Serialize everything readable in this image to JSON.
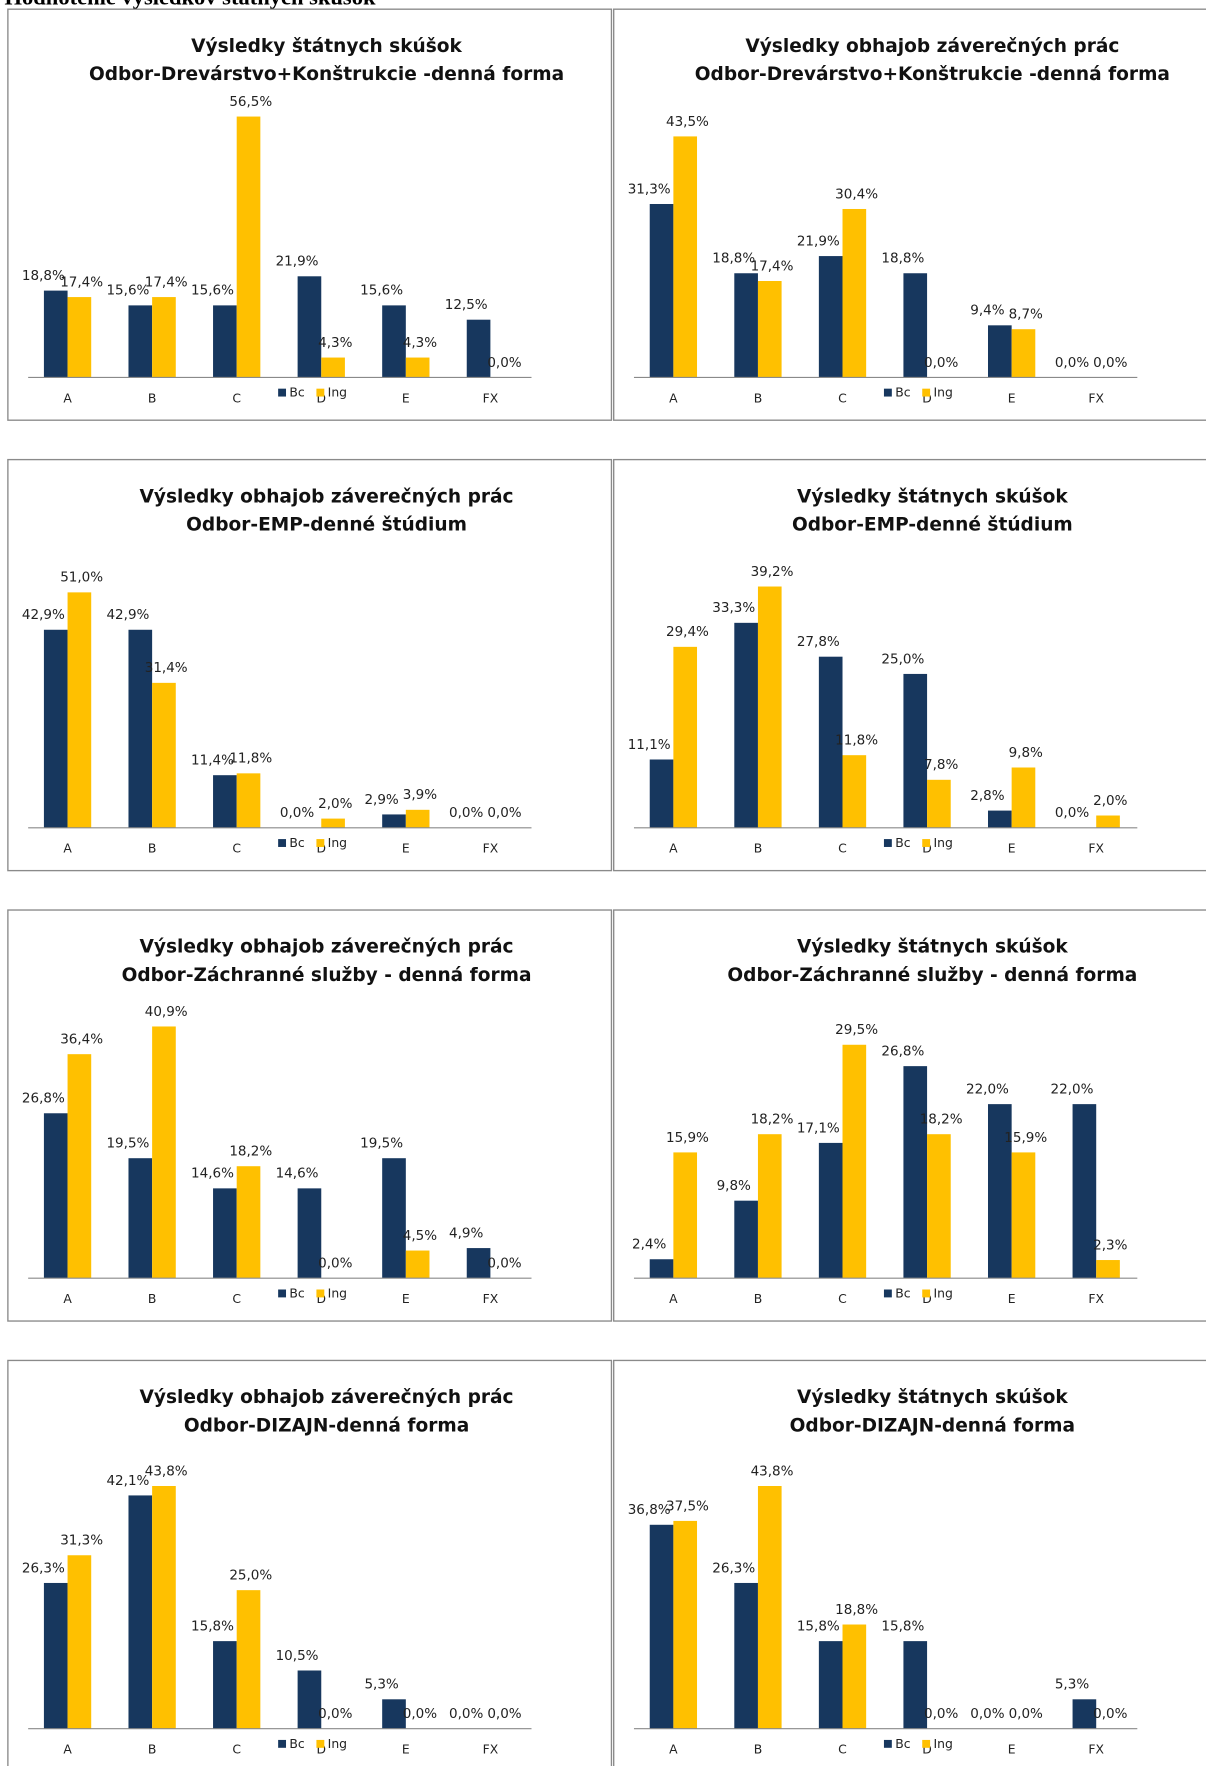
{
  "header": {
    "title": "Hodnotenie výsledkov štátnych skúšok"
  },
  "chart_data": [
    {
      "type": "bar",
      "title": "Výsledky štátnych  skúšok",
      "subtitle": "Odbor-Drevárstvo+Konštrukcie -denná forma",
      "categories": [
        "A",
        "B",
        "C",
        "D",
        "E",
        "FX"
      ],
      "ylim": [
        0,
        60
      ],
      "series": [
        {
          "name": "Bc",
          "color": "#17375e",
          "values": [
            18.8,
            15.6,
            15.6,
            21.9,
            15.6,
            12.5
          ],
          "value_labels": [
            "18,8%",
            "15,6%",
            "15,6%",
            "21,9%",
            "15,6%",
            "12,5%"
          ]
        },
        {
          "name": "Ing",
          "color": "#ffc000",
          "values": [
            17.4,
            17.4,
            56.5,
            4.3,
            4.3,
            0.0
          ],
          "value_labels": [
            "17,4%",
            "17,4%",
            "56,5%",
            "4,3%",
            "4,3%",
            "0,0%"
          ]
        }
      ]
    },
    {
      "type": "bar",
      "title": "Výsledky obhajob záverečných prác",
      "subtitle": "Odbor-Drevárstvo+Konštrukcie -denná forma",
      "categories": [
        "A",
        "B",
        "C",
        "D",
        "E",
        "FX"
      ],
      "ylim": [
        0,
        50
      ],
      "series": [
        {
          "name": "Bc",
          "color": "#17375e",
          "values": [
            31.3,
            18.8,
            21.9,
            18.8,
            9.4,
            0.0
          ],
          "value_labels": [
            "31,3%",
            "18,8%",
            "21,9%",
            "18,8%",
            "9,4%",
            "0,0%"
          ]
        },
        {
          "name": "Ing",
          "color": "#ffc000",
          "values": [
            43.5,
            17.4,
            30.4,
            0.0,
            8.7,
            0.0
          ],
          "value_labels": [
            "43,5%",
            "17,4%",
            "30,4%",
            "0,0%",
            "8,7%",
            "0,0%"
          ]
        }
      ]
    },
    {
      "type": "bar",
      "title": "Výsledky obhajob záverečných prác",
      "subtitle": "Odbor-EMP-denné štúdium",
      "categories": [
        "A",
        "B",
        "C",
        "D",
        "E",
        "FX"
      ],
      "ylim": [
        0,
        60
      ],
      "series": [
        {
          "name": "Bc",
          "color": "#17375e",
          "values": [
            42.9,
            42.9,
            11.4,
            0.0,
            2.9,
            0.0
          ],
          "value_labels": [
            "42,9%",
            "42,9%",
            "11,4%",
            "0,0%",
            "2,9%",
            "0,0%"
          ]
        },
        {
          "name": "Ing",
          "color": "#ffc000",
          "values": [
            51.0,
            31.4,
            11.8,
            2.0,
            3.9,
            0.0
          ],
          "value_labels": [
            "51,0%",
            "31,4%",
            "11,8%",
            "2,0%",
            "3,9%",
            "0,0%"
          ]
        }
      ]
    },
    {
      "type": "bar",
      "title": "Výsledky štátnych skúšok",
      "subtitle": "Odbor-EMP-denné štúdium",
      "categories": [
        "A",
        "B",
        "C",
        "D",
        "E",
        "FX"
      ],
      "ylim": [
        0,
        45
      ],
      "series": [
        {
          "name": "Bc",
          "color": "#17375e",
          "values": [
            11.1,
            33.3,
            27.8,
            25.0,
            2.8,
            0.0
          ],
          "value_labels": [
            "11,1%",
            "33,3%",
            "27,8%",
            "25,0%",
            "2,8%",
            "0,0%"
          ]
        },
        {
          "name": "Ing",
          "color": "#ffc000",
          "values": [
            29.4,
            39.2,
            11.8,
            7.8,
            9.8,
            2.0
          ],
          "value_labels": [
            "29,4%",
            "39,2%",
            "11,8%",
            "7,8%",
            "9,8%",
            "2,0%"
          ]
        }
      ]
    },
    {
      "type": "bar",
      "title": "Výsledky obhajob záverečných prác",
      "subtitle": "Odbor-Záchranné služby - denná forma",
      "categories": [
        "A",
        "B",
        "C",
        "D",
        "E",
        "FX"
      ],
      "ylim": [
        0,
        45
      ],
      "series": [
        {
          "name": "Bc",
          "color": "#17375e",
          "values": [
            26.8,
            19.5,
            14.6,
            14.6,
            19.5,
            4.9
          ],
          "value_labels": [
            "26,8%",
            "19,5%",
            "14,6%",
            "14,6%",
            "19,5%",
            "4,9%"
          ]
        },
        {
          "name": "Ing",
          "color": "#ffc000",
          "values": [
            36.4,
            40.9,
            18.2,
            0.0,
            4.5,
            0.0
          ],
          "value_labels": [
            "36,4%",
            "40,9%",
            "18,2%",
            "0,0%",
            "4,5%",
            "0,0%"
          ]
        }
      ]
    },
    {
      "type": "bar",
      "title": "Výsledky štátnych skúšok",
      "subtitle": "Odbor-Záchranné služby - denná forma",
      "categories": [
        "A",
        "B",
        "C",
        "D",
        "E",
        "FX"
      ],
      "ylim": [
        0,
        35
      ],
      "series": [
        {
          "name": "Bc",
          "color": "#17375e",
          "values": [
            2.4,
            9.8,
            17.1,
            26.8,
            22.0,
            22.0
          ],
          "value_labels": [
            "2,4%",
            "9,8%",
            "17,1%",
            "26,8%",
            "22,0%",
            "22,0%"
          ]
        },
        {
          "name": "Ing",
          "color": "#ffc000",
          "values": [
            15.9,
            18.2,
            29.5,
            18.2,
            15.9,
            2.3
          ],
          "value_labels": [
            "15,9%",
            "18,2%",
            "29,5%",
            "18,2%",
            "15,9%",
            "2,3%"
          ]
        }
      ]
    },
    {
      "type": "bar",
      "title": "Výsledky obhajob záverečných prác",
      "subtitle": "Odbor-DIZAJN-denná forma",
      "categories": [
        "A",
        "B",
        "C",
        "D",
        "E",
        "FX"
      ],
      "ylim": [
        0,
        50
      ],
      "series": [
        {
          "name": "Bc",
          "color": "#17375e",
          "values": [
            26.3,
            42.1,
            15.8,
            10.5,
            5.3,
            0.0
          ],
          "value_labels": [
            "26,3%",
            "42,1%",
            "15,8%",
            "10,5%",
            "5,3%",
            "0,0%"
          ]
        },
        {
          "name": "Ing",
          "color": "#ffc000",
          "values": [
            31.3,
            43.8,
            25.0,
            0.0,
            0.0,
            0.0
          ],
          "value_labels": [
            "31,3%",
            "43,8%",
            "25,0%",
            "0,0%",
            "0,0%",
            "0,0%"
          ]
        }
      ]
    },
    {
      "type": "bar",
      "title": "Výsledky štátnych skúšok",
      "subtitle": "Odbor-DIZAJN-denná forma",
      "categories": [
        "A",
        "B",
        "C",
        "D",
        "E",
        "FX"
      ],
      "ylim": [
        0,
        50
      ],
      "series": [
        {
          "name": "Bc",
          "color": "#17375e",
          "values": [
            36.8,
            26.3,
            15.8,
            15.8,
            0.0,
            5.3
          ],
          "value_labels": [
            "36,8%",
            "26,3%",
            "15,8%",
            "15,8%",
            "0,0%",
            "5,3%"
          ]
        },
        {
          "name": "Ing",
          "color": "#ffc000",
          "values": [
            37.5,
            43.8,
            18.8,
            0.0,
            0.0,
            0.0
          ],
          "value_labels": [
            "37,5%",
            "43,8%",
            "18,8%",
            "0,0%",
            "0,0%",
            "0,0%"
          ]
        }
      ]
    }
  ]
}
